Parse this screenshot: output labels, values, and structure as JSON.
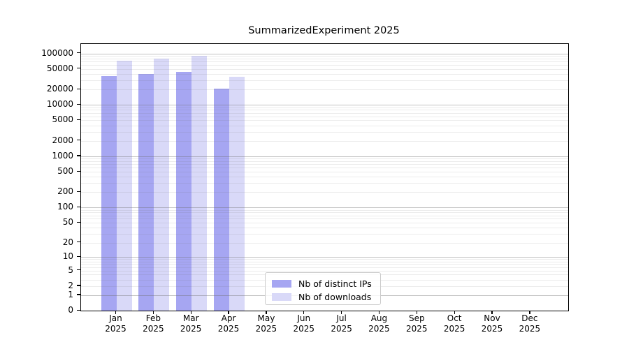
{
  "figure": {
    "title": "SummarizedExperiment 2025"
  },
  "chart_data": {
    "type": "bar",
    "title": "SummarizedExperiment 2025",
    "categories": [
      "Jan",
      "Feb",
      "Mar",
      "Apr",
      "May",
      "Jun",
      "Jul",
      "Aug",
      "Sep",
      "Oct",
      "Nov",
      "Dec"
    ],
    "category_year": "2025",
    "series": [
      {
        "name": "Nb of distinct IPs",
        "color": "#a6a6f2",
        "values": [
          36000,
          40000,
          44000,
          20500,
          null,
          null,
          null,
          null,
          null,
          null,
          null,
          null
        ]
      },
      {
        "name": "Nb of downloads",
        "color": "#d9d9f8",
        "values": [
          72000,
          78000,
          91000,
          35000,
          null,
          null,
          null,
          null,
          null,
          null,
          null,
          null
        ]
      }
    ],
    "xlabel": "",
    "ylabel": "",
    "yaxis": {
      "scale": "log1p",
      "ylim": [
        0,
        152000
      ],
      "tick_values": [
        100000,
        50000,
        20000,
        10000,
        5000,
        2000,
        1000,
        500,
        200,
        100,
        50,
        20,
        10,
        5,
        2,
        1,
        0
      ],
      "tick_labels": [
        "100000",
        "50000",
        "20000",
        "10000",
        "5000",
        "2000",
        "1000",
        "500",
        "200",
        "100",
        "50",
        "20",
        "10",
        "5",
        "2",
        "1",
        "0"
      ],
      "major_gridlines": [
        1,
        10,
        100,
        1000,
        10000,
        100000
      ],
      "minor_gridline_decades": [
        1,
        10,
        100,
        1000,
        10000
      ]
    },
    "grid": "horizontal-only",
    "legend_position": "lower center"
  }
}
